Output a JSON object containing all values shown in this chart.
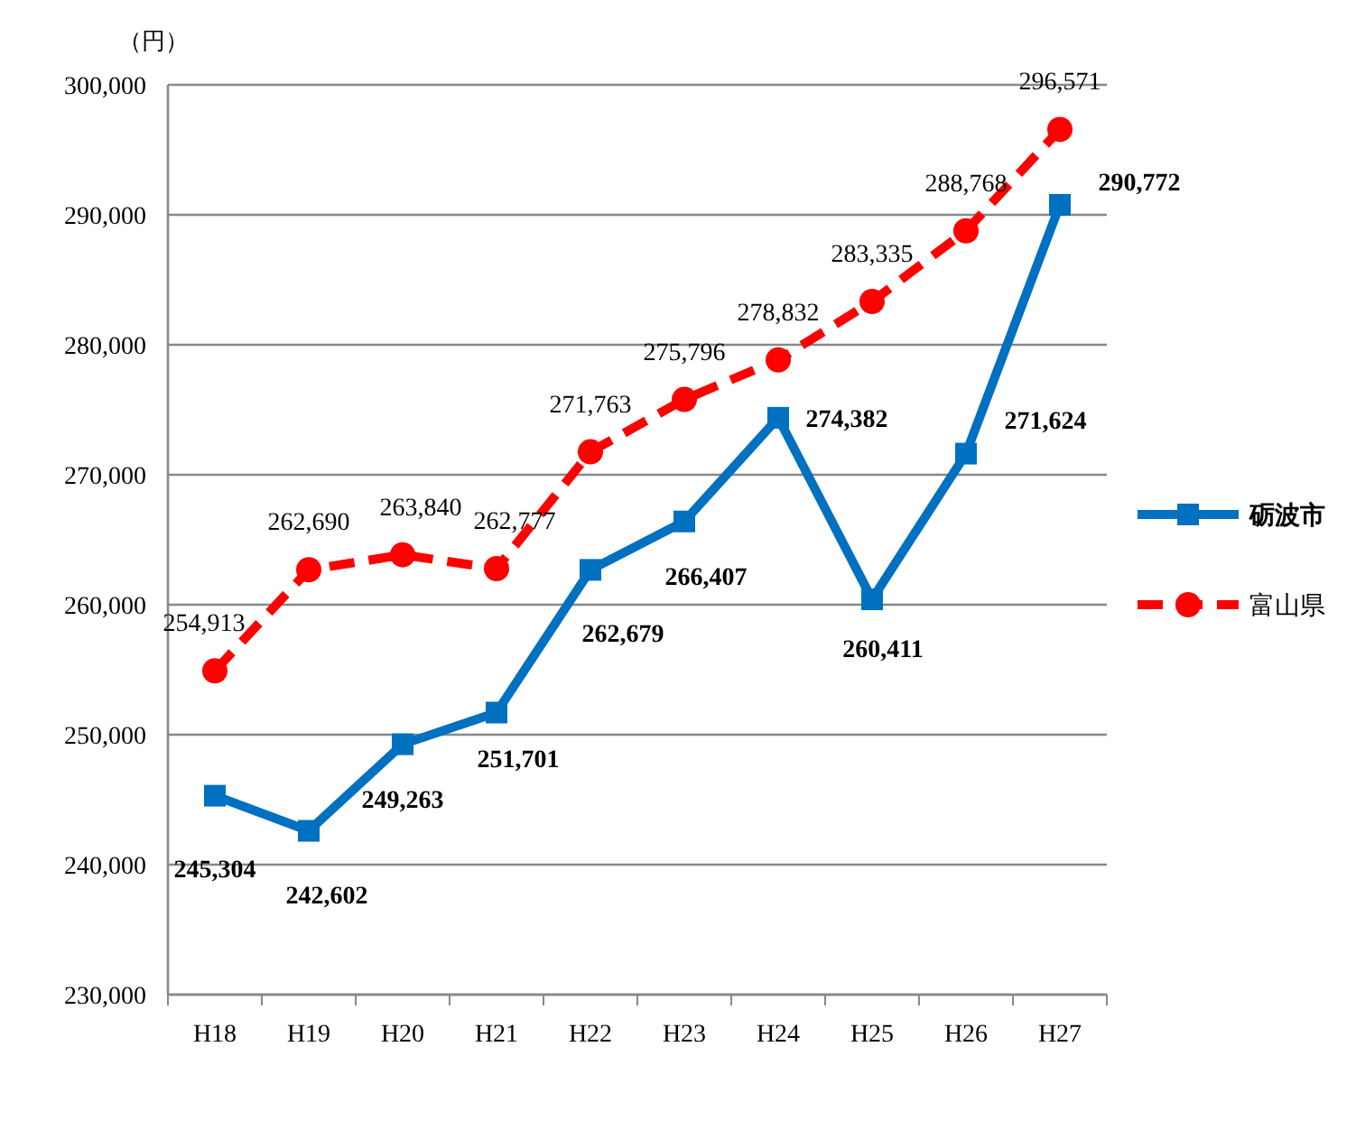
{
  "chart_data": {
    "type": "line",
    "ylabel": "（円）",
    "categories": [
      "H18",
      "H19",
      "H20",
      "H21",
      "H22",
      "H23",
      "H24",
      "H25",
      "H26",
      "H27"
    ],
    "series": [
      {
        "name": "砺波市",
        "color": "#0070c0",
        "marker": "square",
        "line_style": "solid",
        "values": [
          245304,
          242602,
          249263,
          251701,
          262679,
          266407,
          274382,
          260411,
          271624,
          290772
        ],
        "value_labels": [
          "245,304",
          "242,602",
          "249,263",
          "251,701",
          "262,679",
          "266,407",
          "274,382",
          "260,411",
          "271,624",
          "290,772"
        ]
      },
      {
        "name": "富山県",
        "color": "#ff0000",
        "marker": "circle",
        "line_style": "dashed",
        "values": [
          254913,
          262690,
          263840,
          262777,
          271763,
          275796,
          278832,
          283335,
          288768,
          296571
        ],
        "value_labels": [
          "254,913",
          "262,690",
          "263,840",
          "262,777",
          "271,763",
          "275,796",
          "278,832",
          "283,335",
          "288,768",
          "296,571"
        ]
      }
    ],
    "ylim": [
      230000,
      300000
    ],
    "yticks": [
      {
        "value": 230000,
        "label": "230,000"
      },
      {
        "value": 240000,
        "label": "240,000"
      },
      {
        "value": 250000,
        "label": "250,000"
      },
      {
        "value": 260000,
        "label": "260,000"
      },
      {
        "value": 270000,
        "label": "270,000"
      },
      {
        "value": 280000,
        "label": "280,000"
      },
      {
        "value": 290000,
        "label": "290,000"
      },
      {
        "value": 300000,
        "label": "300,000"
      }
    ],
    "grid": "y",
    "legend": "right"
  }
}
